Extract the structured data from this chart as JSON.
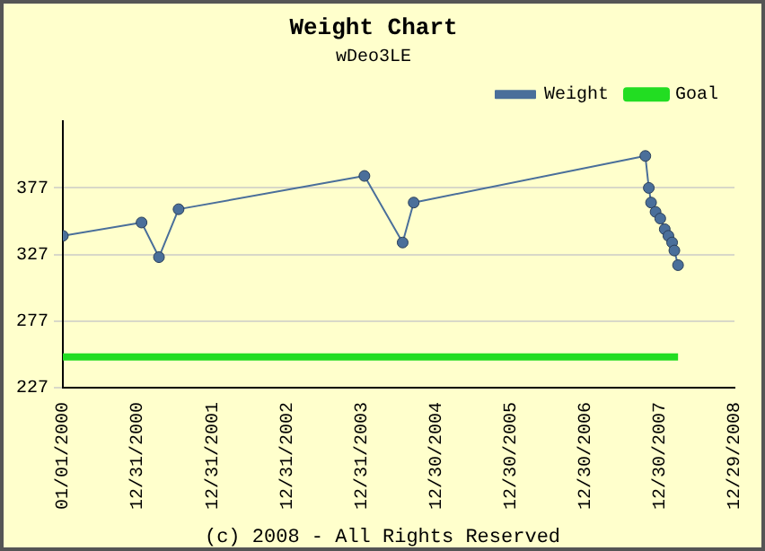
{
  "chart_data": {
    "type": "line",
    "title": "Weight Chart",
    "subtitle": "wDeo3LE",
    "annotations": [
      "(c) 2008 - All Rights Reserved"
    ],
    "xlim": [
      "2000-01-01",
      "2008-12-29"
    ],
    "xticks": [
      {
        "value": "2000-01-01",
        "label": "01/01/2000"
      },
      {
        "value": "2000-12-31",
        "label": "12/31/2000"
      },
      {
        "value": "2001-12-31",
        "label": "12/31/2001"
      },
      {
        "value": "2002-12-31",
        "label": "12/31/2002"
      },
      {
        "value": "2003-12-31",
        "label": "12/31/2003"
      },
      {
        "value": "2004-12-30",
        "label": "12/30/2004"
      },
      {
        "value": "2005-12-30",
        "label": "12/30/2005"
      },
      {
        "value": "2006-12-30",
        "label": "12/30/2006"
      },
      {
        "value": "2007-12-30",
        "label": "12/30/2007"
      },
      {
        "value": "2008-12-29",
        "label": "12/29/2008"
      }
    ],
    "ylim": [
      227,
      427
    ],
    "yticks": [
      227,
      277,
      327,
      377
    ],
    "grid": "y",
    "legend": "top right",
    "marker": "circle",
    "line_style": "solid",
    "series": [
      {
        "name": "Weight",
        "color": "#4a6f9a",
        "x": [
          "2000-01-01",
          "2001-01-20",
          "2001-04-15",
          "2001-07-20",
          "2004-01-15",
          "2004-07-20",
          "2004-09-12",
          "2007-10-20",
          "2007-11-06",
          "2007-11-17",
          "2007-12-09",
          "2008-01-01",
          "2008-01-23",
          "2008-02-10",
          "2008-02-28",
          "2008-03-10",
          "2008-03-28"
        ],
        "values": [
          341,
          351,
          325,
          361,
          386,
          336,
          366,
          401,
          377,
          366,
          359,
          354,
          346,
          341,
          336,
          330,
          319
        ]
      },
      {
        "name": "Goal",
        "color": "#22dd22",
        "marker": "none",
        "x": [
          "2000-01-01",
          "2008-03-28"
        ],
        "values": [
          250,
          250
        ]
      }
    ]
  }
}
